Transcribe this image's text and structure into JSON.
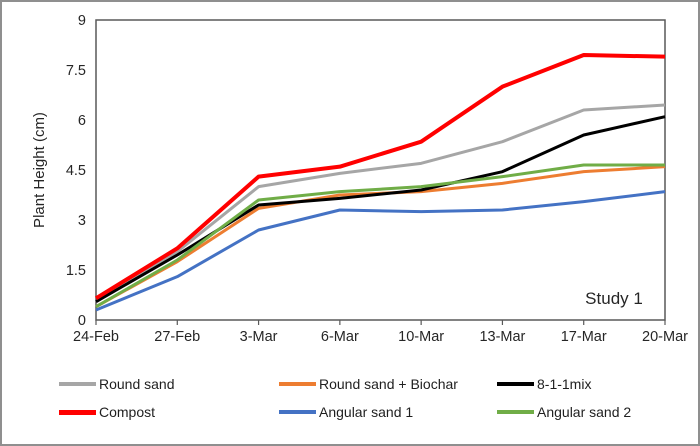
{
  "colors": {
    "frame_border": "#8F8F8F",
    "axis_line": "#595959",
    "axis_text": "#262626",
    "background": "#FFFFFF"
  },
  "chart_data": {
    "type": "line",
    "title": "",
    "xlabel": "",
    "ylabel": "Plant Height (cm)",
    "annotation": "Study 1",
    "grid": false,
    "legend_position": "bottom",
    "categories": [
      "24-Feb",
      "27-Feb",
      "3-Mar",
      "6-Mar",
      "10-Mar",
      "13-Mar",
      "17-Mar",
      "20-Mar"
    ],
    "ylim": [
      0,
      9
    ],
    "ytick_labels": [
      "0",
      "1.5",
      "3",
      "4.5",
      "6",
      "7.5",
      "9"
    ],
    "series": [
      {
        "name": "Round sand",
        "color": "#A6A6A6",
        "line_width": 3,
        "values": [
          0.55,
          2.05,
          4.0,
          4.4,
          4.7,
          5.35,
          6.3,
          6.45
        ]
      },
      {
        "name": "Round sand + Biochar",
        "color": "#ED7D31",
        "line_width": 3,
        "values": [
          0.4,
          1.75,
          3.35,
          3.75,
          3.85,
          4.1,
          4.45,
          4.6
        ]
      },
      {
        "name": "8-1-1mix",
        "color": "#000000",
        "line_width": 3,
        "values": [
          0.55,
          1.95,
          3.45,
          3.65,
          3.9,
          4.45,
          5.55,
          6.1
        ]
      },
      {
        "name": "Compost",
        "color": "#FF0000",
        "line_width": 4,
        "values": [
          0.65,
          2.15,
          4.3,
          4.6,
          5.35,
          7.0,
          7.95,
          7.9
        ]
      },
      {
        "name": "Angular sand 1",
        "color": "#4472C4",
        "line_width": 3,
        "values": [
          0.3,
          1.3,
          2.7,
          3.3,
          3.25,
          3.3,
          3.55,
          3.85
        ]
      },
      {
        "name": "Angular sand 2",
        "color": "#70AD47",
        "line_width": 3,
        "values": [
          0.4,
          1.8,
          3.6,
          3.85,
          4.0,
          4.3,
          4.65,
          4.65
        ]
      }
    ]
  }
}
